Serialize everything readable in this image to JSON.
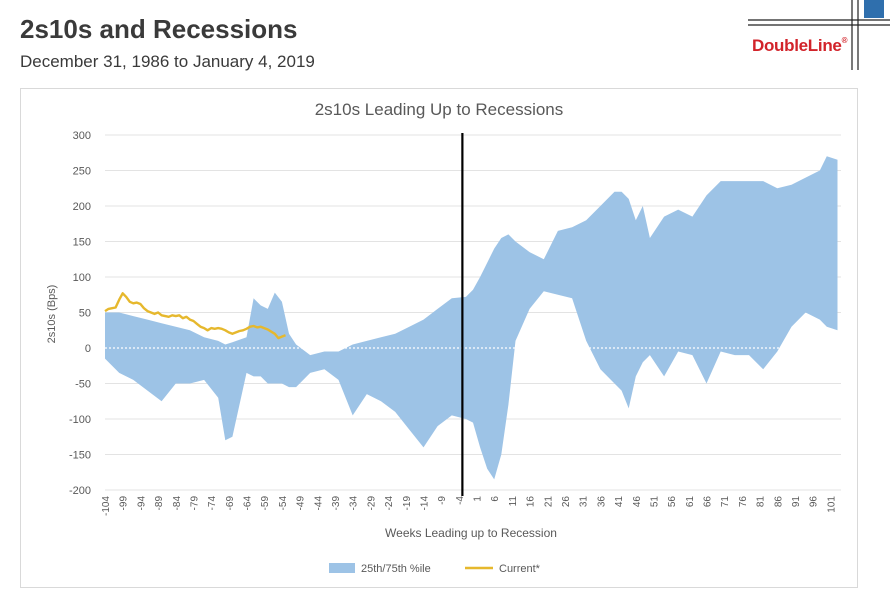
{
  "header": {
    "title": "2s10s and Recessions",
    "subtitle": "December 31, 1986 to January 4, 2019"
  },
  "logo": {
    "text": "DoubleLine",
    "mark": "®"
  },
  "chart_data": {
    "type": "area",
    "title": "2s10s Leading Up to Recessions",
    "xlabel": "Weeks Leading up to Recession",
    "ylabel": "2s10s (Bps)",
    "xlim": [
      -104,
      104
    ],
    "ylim": [
      -200,
      300
    ],
    "yticks": [
      -200,
      -150,
      -100,
      -50,
      0,
      50,
      100,
      150,
      200,
      250,
      300
    ],
    "xticks": [
      -104,
      -99,
      -94,
      -89,
      -84,
      -79,
      -74,
      -69,
      -64,
      -59,
      -54,
      -49,
      -44,
      -39,
      -34,
      -29,
      -24,
      -19,
      -14,
      -9,
      -4,
      1,
      6,
      11,
      16,
      21,
      26,
      31,
      36,
      41,
      46,
      51,
      56,
      61,
      66,
      71,
      76,
      81,
      86,
      91,
      96,
      101
    ],
    "recession_marker_x": -3,
    "legend_position": "bottom",
    "series": [
      {
        "name": "25th/75th %ile",
        "kind": "band",
        "color": "#9dc3e6",
        "x": [
          -104,
          -100,
          -96,
          -92,
          -88,
          -84,
          -80,
          -76,
          -72,
          -70,
          -68,
          -64,
          -62,
          -60,
          -58,
          -56,
          -54,
          -52,
          -50,
          -46,
          -42,
          -38,
          -34,
          -30,
          -26,
          -22,
          -18,
          -14,
          -10,
          -6,
          -2,
          0,
          2,
          4,
          6,
          8,
          10,
          12,
          16,
          20,
          24,
          28,
          32,
          36,
          40,
          42,
          44,
          46,
          48,
          50,
          54,
          58,
          62,
          66,
          70,
          74,
          78,
          82,
          86,
          90,
          94,
          98,
          100,
          103
        ],
        "upper": [
          50,
          50,
          45,
          40,
          35,
          30,
          25,
          15,
          10,
          5,
          8,
          15,
          70,
          60,
          55,
          78,
          65,
          20,
          5,
          -10,
          -5,
          -5,
          5,
          10,
          15,
          20,
          30,
          40,
          55,
          70,
          72,
          82,
          100,
          120,
          140,
          155,
          160,
          150,
          135,
          125,
          165,
          170,
          180,
          200,
          220,
          220,
          210,
          180,
          200,
          155,
          185,
          195,
          185,
          215,
          235,
          235,
          235,
          235,
          225,
          230,
          240,
          250,
          270,
          265
        ],
        "lower": [
          -15,
          -35,
          -45,
          -60,
          -75,
          -50,
          -50,
          -45,
          -70,
          -130,
          -125,
          -35,
          -40,
          -40,
          -50,
          -50,
          -50,
          -55,
          -55,
          -35,
          -30,
          -45,
          -95,
          -65,
          -75,
          -90,
          -115,
          -140,
          -110,
          -95,
          -100,
          -105,
          -140,
          -170,
          -185,
          -150,
          -80,
          10,
          55,
          80,
          75,
          70,
          10,
          -30,
          -50,
          -60,
          -85,
          -40,
          -20,
          -10,
          -40,
          -5,
          -10,
          -50,
          -5,
          -10,
          -10,
          -30,
          -5,
          30,
          50,
          40,
          30,
          25
        ]
      },
      {
        "name": "Current*",
        "kind": "line",
        "color": "#e6b82d",
        "x": [
          -104,
          -103,
          -102,
          -101,
          -100,
          -99,
          -98,
          -97,
          -96,
          -95,
          -94,
          -93,
          -92,
          -91,
          -90,
          -89,
          -88,
          -87,
          -86,
          -85,
          -84,
          -83,
          -82,
          -81,
          -80,
          -79,
          -78,
          -77,
          -76,
          -75,
          -74,
          -73,
          -72,
          -71,
          -70,
          -69,
          -68,
          -67,
          -66,
          -65,
          -64,
          -63,
          -62,
          -61,
          -60,
          -59,
          -58,
          -57,
          -56,
          -55,
          -54,
          -53
        ],
        "values": [
          52,
          55,
          56,
          57,
          68,
          77,
          72,
          65,
          63,
          64,
          62,
          56,
          52,
          50,
          48,
          50,
          46,
          45,
          44,
          46,
          45,
          46,
          42,
          44,
          40,
          38,
          34,
          30,
          28,
          25,
          28,
          27,
          28,
          27,
          25,
          22,
          20,
          22,
          24,
          25,
          27,
          30,
          31,
          29,
          30,
          28,
          26,
          23,
          20,
          14,
          16,
          18
        ]
      }
    ]
  }
}
